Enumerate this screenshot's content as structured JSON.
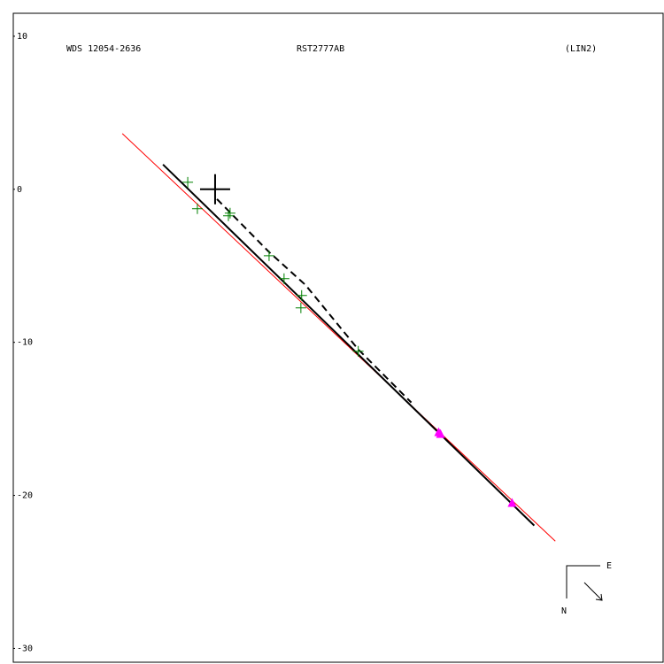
{
  "chart_data": {
    "type": "scatter",
    "texts": [
      "WDS 12054-2636",
      "RST2777AB",
      "(LIN2)"
    ],
    "compass": {
      "east": "E",
      "north": "N"
    },
    "xlim": [
      -13.2,
      29.3
    ],
    "ylim": [
      -30.9,
      11.5
    ],
    "yticks": [
      10,
      0,
      -10,
      -20,
      -30
    ],
    "lines": [
      {
        "color": "#ff0000",
        "style": "solid",
        "x": [
          -6.07,
          22.25
        ],
        "values": [
          3.64,
          -22.99
        ]
      },
      {
        "color": "#000000",
        "style": "solid",
        "x": [
          -3.41,
          20.87
        ],
        "values": [
          1.62,
          -21.97
        ]
      },
      {
        "color": "#000000",
        "style": "dashed",
        "x": [
          0.12,
          3.53,
          5.9,
          9.36,
          12.83
        ],
        "values": [
          -0.64,
          -4.1,
          -6.24,
          -10.46,
          -13.93
        ]
      }
    ],
    "series": [
      {
        "color": "#008000",
        "marker": "plus",
        "x": [
          -1.79,
          -1.16,
          0.87,
          0.98,
          3.53,
          4.51,
          5.66,
          5.61,
          9.36
        ],
        "values": [
          0.46,
          -1.27,
          -1.73,
          -1.56,
          -4.34,
          -5.84,
          -6.94,
          -7.75,
          -10.58
        ]
      },
      {
        "color": "#ff00ff",
        "marker": "triangle",
        "x": [
          14.62,
          14.74,
          19.42
        ],
        "values": [
          -15.9,
          -16.01,
          -20.52
        ]
      },
      {
        "color": "#000000",
        "marker": "big-plus",
        "x": [
          0
        ],
        "values": [
          0
        ]
      }
    ]
  }
}
